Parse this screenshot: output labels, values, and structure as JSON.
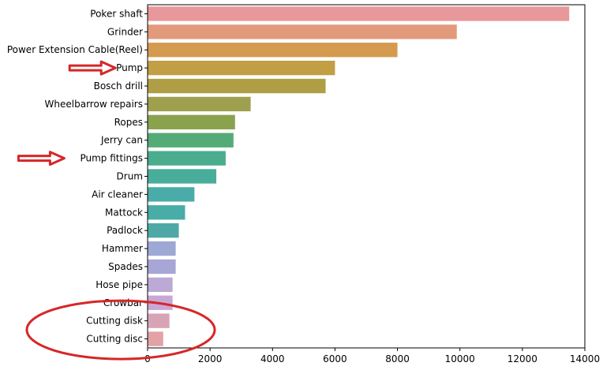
{
  "chart_data": {
    "type": "bar",
    "orientation": "horizontal",
    "categories": [
      "Poker shaft",
      "Grinder",
      "Power Extension Cable(Reel)",
      "Pump",
      "Bosch drill",
      "Wheelbarrow repairs",
      "Ropes",
      "Jerry can",
      "Pump fittings",
      "Drum",
      "Air cleaner",
      "Mattock",
      "Padlock",
      "Hammer",
      "Spades",
      "Hose pipe",
      "Crowbar",
      "Cutting disk",
      "Cutting disc"
    ],
    "values": [
      13500,
      9900,
      8000,
      6000,
      5700,
      3300,
      2800,
      2750,
      2500,
      2200,
      1500,
      1200,
      1000,
      900,
      900,
      800,
      800,
      700,
      500
    ],
    "colors": [
      "#e8989a",
      "#e29a7c",
      "#d39a50",
      "#c29e45",
      "#b09e46",
      "#9fa04e",
      "#8aa24e",
      "#54ab78",
      "#4aad8e",
      "#49ad9b",
      "#4aaca8",
      "#48ada6",
      "#4ea9a6",
      "#9ea8d4",
      "#a8a6d6",
      "#bca9d6",
      "#c8a7d6",
      "#d7a4b6",
      "#e2a2a6"
    ],
    "ticks": [
      0,
      2000,
      4000,
      6000,
      8000,
      10000,
      12000,
      14000
    ],
    "xlim": [
      0,
      14000
    ],
    "title": "",
    "xlabel": "",
    "ylabel": "",
    "grid": false,
    "annotations": [
      {
        "type": "arrow",
        "target": "Pump",
        "color": "#d62728"
      },
      {
        "type": "arrow",
        "target": "Pump fittings",
        "color": "#d62728"
      },
      {
        "type": "ellipse",
        "target": [
          "Cutting disk",
          "Cutting disc"
        ],
        "color": "#d62728"
      }
    ]
  }
}
